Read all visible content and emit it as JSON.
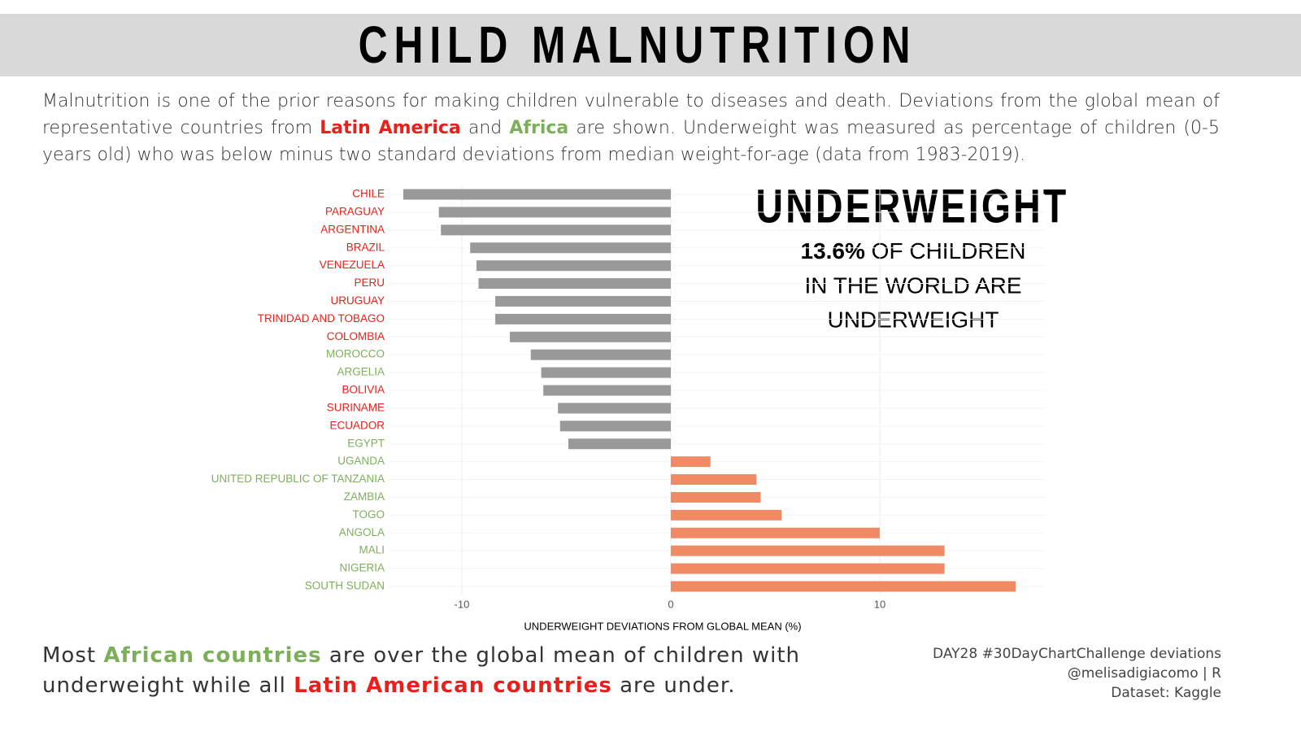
{
  "header": {
    "title": "CHILD MALNUTRITION"
  },
  "intro": [
    {
      "text": "Malnutrition is one of the prior reasons for making children vulnerable to diseases and death. Deviations from the global mean of representative countries from "
    },
    {
      "text": "Latin America",
      "color": "#e8201c"
    },
    {
      "text": " and "
    },
    {
      "text": "Africa",
      "color": "#7daf5a"
    },
    {
      "text": " are shown. Underweight was measured as percentage of children (0-5 years old) who was below minus two standard deviations from median weight-for-age (data from 1983-2019)."
    }
  ],
  "annotation": {
    "title": "UNDERWEIGHT",
    "highlight": "13.6%",
    "lines": [
      " OF CHILDREN",
      "IN THE WORLD ARE",
      "UNDERWEIGHT"
    ]
  },
  "footer": [
    {
      "text": "Most "
    },
    {
      "text": "African countries",
      "color": "#7daf5a"
    },
    {
      "text": " are over the global mean of children with underweight while all "
    },
    {
      "text": "Latin American countries",
      "color": "#e8201c"
    },
    {
      "text": " are under."
    }
  ],
  "credits": [
    "DAY28 #30DayChartChallenge deviations",
    "@melisadigiacomo | R",
    "Dataset:  Kaggle"
  ],
  "chart_data": {
    "type": "bar",
    "orientation": "horizontal",
    "categories": [
      "CHILE",
      "PARAGUAY",
      "ARGENTINA",
      "BRAZIL",
      "VENEZUELA",
      "PERU",
      "URUGUAY",
      "TRINIDAD AND TOBAGO",
      "COLOMBIA",
      "MOROCCO",
      "ARGELIA",
      "BOLIVIA",
      "SURINAME",
      "ECUADOR",
      "EGYPT",
      "UGANDA",
      "UNITED REPUBLIC OF TANZANIA",
      "ZAMBIA",
      "TOGO",
      "ANGOLA",
      "MALI",
      "NIGERIA",
      "SOUTH SUDAN"
    ],
    "values": [
      -12.8,
      -11.1,
      -11.0,
      -9.6,
      -9.3,
      -9.2,
      -8.4,
      -8.4,
      -7.7,
      -6.7,
      -6.2,
      -6.1,
      -5.4,
      -5.3,
      -4.9,
      1.9,
      4.1,
      4.3,
      5.3,
      10.0,
      13.1,
      13.1,
      16.5
    ],
    "label_colors": [
      "#e8201c",
      "#e8201c",
      "#e8201c",
      "#e8201c",
      "#e8201c",
      "#e8201c",
      "#e8201c",
      "#e8201c",
      "#e8201c",
      "#7daf5a",
      "#7daf5a",
      "#e8201c",
      "#e8201c",
      "#e8201c",
      "#7daf5a",
      "#7daf5a",
      "#7daf5a",
      "#7daf5a",
      "#7daf5a",
      "#7daf5a",
      "#7daf5a",
      "#7daf5a",
      "#7daf5a"
    ],
    "negative_color": "#999999",
    "positive_color": "#f08a65",
    "xlabel": "UNDERWEIGHT DEVIATIONS FROM GLOBAL MEAN (%)",
    "xlim": [
      -13.5,
      17.9
    ],
    "xticks": [
      -10,
      0,
      10
    ],
    "grid": true
  }
}
